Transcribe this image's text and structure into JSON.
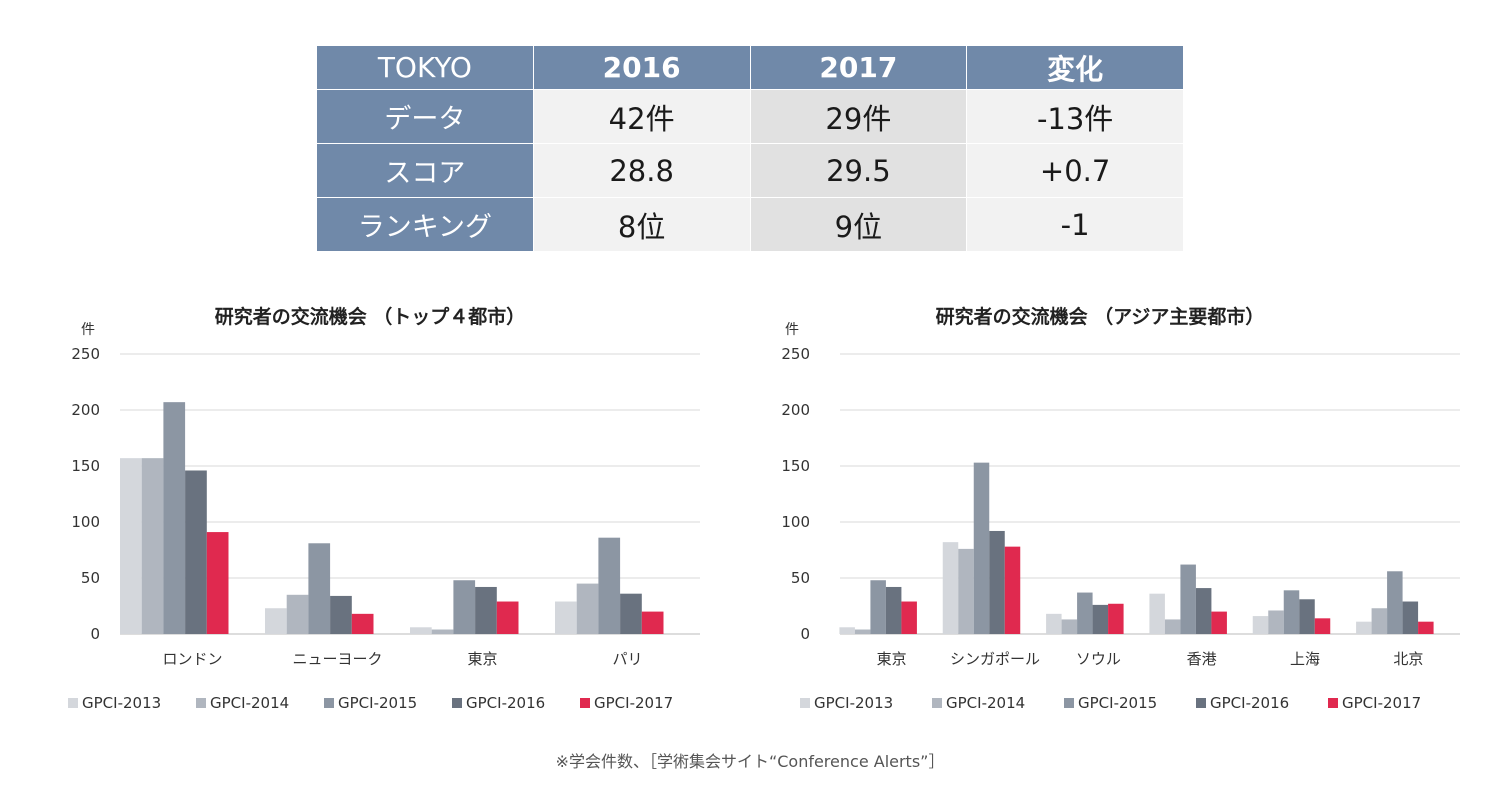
{
  "table": {
    "header": [
      "TOKYO",
      "2016",
      "2017",
      "変化"
    ],
    "rows": [
      {
        "label": "データ",
        "v2016": "42件",
        "v2017": "29件",
        "change": "-13件"
      },
      {
        "label": "スコア",
        "v2016": "28.8",
        "v2017": "29.5",
        "change": "+0.7"
      },
      {
        "label": "ランキング",
        "v2016": "8位",
        "v2017": "9位",
        "change": "-1"
      }
    ]
  },
  "colors": {
    "header_bg": "#7089a9",
    "series": [
      "#d4d7dc",
      "#b0b6bf",
      "#8c96a3",
      "#69727f",
      "#e0294f"
    ]
  },
  "chart_data": [
    {
      "type": "bar",
      "title": "研究者の交流機会 （トップ４都市）",
      "ylabel": "件",
      "ylim": [
        0,
        250
      ],
      "yticks": [
        "0",
        "50",
        "100",
        "150",
        "200",
        "250"
      ],
      "grid": true,
      "legend": "bottom",
      "categories": [
        "ロンドン",
        "ニューヨーク",
        "東京",
        "パリ"
      ],
      "series": [
        {
          "name": "GPCI-2013",
          "values": [
            157,
            23,
            6,
            29
          ]
        },
        {
          "name": "GPCI-2014",
          "values": [
            157,
            35,
            4,
            45
          ]
        },
        {
          "name": "GPCI-2015",
          "values": [
            207,
            81,
            48,
            86
          ]
        },
        {
          "name": "GPCI-2016",
          "values": [
            146,
            34,
            42,
            36
          ]
        },
        {
          "name": "GPCI-2017",
          "values": [
            91,
            18,
            29,
            20
          ]
        }
      ]
    },
    {
      "type": "bar",
      "title": "研究者の交流機会 （アジア主要都市）",
      "ylabel": "件",
      "ylim": [
        0,
        250
      ],
      "yticks": [
        "0",
        "50",
        "100",
        "150",
        "200",
        "250"
      ],
      "grid": true,
      "legend": "bottom",
      "categories": [
        "東京",
        "シンガポール",
        "ソウル",
        "香港",
        "上海",
        "北京"
      ],
      "series": [
        {
          "name": "GPCI-2013",
          "values": [
            6,
            82,
            18,
            36,
            16,
            11
          ]
        },
        {
          "name": "GPCI-2014",
          "values": [
            4,
            76,
            13,
            13,
            21,
            23
          ]
        },
        {
          "name": "GPCI-2015",
          "values": [
            48,
            153,
            37,
            62,
            39,
            56
          ]
        },
        {
          "name": "GPCI-2016",
          "values": [
            42,
            92,
            26,
            41,
            31,
            29
          ]
        },
        {
          "name": "GPCI-2017",
          "values": [
            29,
            78,
            27,
            20,
            14,
            11
          ]
        }
      ]
    }
  ],
  "footnote": "※学会件数、［学術集会サイト“Conference Alerts”］"
}
